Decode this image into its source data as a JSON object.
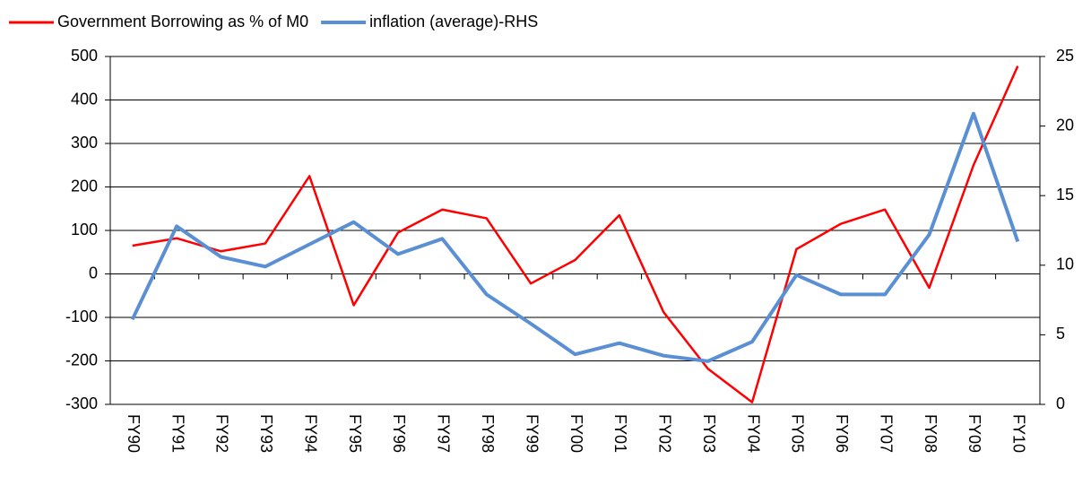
{
  "chart_data": {
    "type": "line",
    "categories": [
      "FY90",
      "FY91",
      "FY92",
      "FY93",
      "FY94",
      "FY95",
      "FY96",
      "FY97",
      "FY98",
      "FY99",
      "FY00",
      "FY01",
      "FY02",
      "FY03",
      "FY04",
      "FY05",
      "FY06",
      "FY07",
      "FY08",
      "FY09",
      "FY10"
    ],
    "series": [
      {
        "name": "Government Borrowing as % of M0",
        "color": "#ff0000",
        "values": [
          65,
          82,
          52,
          70,
          225,
          -72,
          95,
          148,
          128,
          -22,
          32,
          135,
          -88,
          -218,
          -295,
          57,
          115,
          148,
          -32,
          250,
          478
        ]
      },
      {
        "name": "inflation (average)-RHS",
        "color": "#5b8fd4",
        "axis": "y2",
        "values": [
          6.1,
          12.8,
          10.6,
          9.9,
          11.5,
          13.1,
          10.8,
          11.9,
          7.9,
          5.8,
          3.6,
          4.4,
          3.5,
          3.1,
          4.5,
          9.3,
          7.9,
          7.9,
          12.2,
          20.9,
          11.7
        ]
      }
    ],
    "ylim": [
      -300,
      500
    ],
    "yticks": [
      -300,
      -200,
      -100,
      0,
      100,
      200,
      300,
      400,
      500
    ],
    "y2lim": [
      0,
      25
    ],
    "y2ticks": [
      0,
      5,
      10,
      15,
      20,
      25
    ],
    "grid": true,
    "legend": "top-left"
  }
}
